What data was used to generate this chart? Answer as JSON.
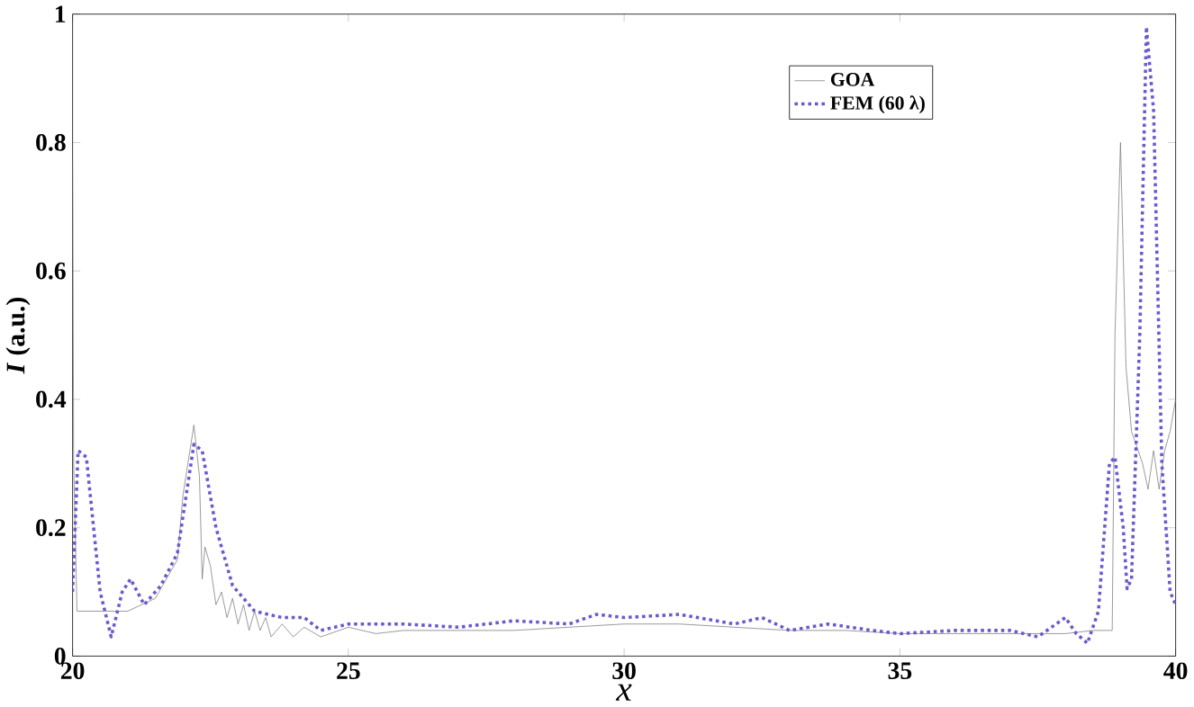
{
  "chart_data": {
    "type": "line",
    "xlabel": "x",
    "ylabel": "*I* (a.u.)",
    "xlim": [
      20,
      40
    ],
    "ylim": [
      0,
      1
    ],
    "xticks": [
      20,
      25,
      30,
      35,
      40
    ],
    "yticks": [
      0,
      0.2,
      0.4,
      0.6,
      0.8,
      1
    ],
    "grid": false,
    "legend": "top right",
    "series": [
      {
        "name": "GOA",
        "color": "#808080",
        "line_style": "solid",
        "x": [
          20,
          20.02,
          20.08,
          20.5,
          21,
          21.5,
          21.9,
          22.0,
          22.2,
          22.3,
          22.35,
          22.4,
          22.5,
          22.6,
          22.7,
          22.8,
          22.9,
          23.0,
          23.1,
          23.2,
          23.3,
          23.4,
          23.5,
          23.6,
          23.8,
          24,
          24.2,
          24.5,
          25,
          25.5,
          26,
          27,
          28,
          29,
          30,
          31,
          32,
          33,
          34,
          35,
          36,
          37,
          38,
          38.5,
          38.85,
          38.9,
          39.0,
          39.1,
          39.2,
          39.4,
          39.5,
          39.6,
          39.7,
          39.8,
          39.9,
          40
        ],
        "values": [
          0.77,
          0.3,
          0.07,
          0.07,
          0.07,
          0.09,
          0.15,
          0.25,
          0.36,
          0.28,
          0.12,
          0.17,
          0.14,
          0.08,
          0.1,
          0.06,
          0.09,
          0.05,
          0.08,
          0.04,
          0.07,
          0.04,
          0.06,
          0.03,
          0.05,
          0.03,
          0.045,
          0.03,
          0.045,
          0.035,
          0.04,
          0.04,
          0.04,
          0.045,
          0.05,
          0.05,
          0.045,
          0.04,
          0.04,
          0.035,
          0.035,
          0.035,
          0.035,
          0.04,
          0.04,
          0.5,
          0.8,
          0.45,
          0.35,
          0.3,
          0.26,
          0.32,
          0.26,
          0.32,
          0.35,
          0.4
        ]
      },
      {
        "name": "FEM (60 λ)",
        "color": "#6a5acd",
        "line_style": "dotted",
        "x": [
          20,
          20.1,
          20.25,
          20.5,
          20.7,
          20.9,
          21.05,
          21.3,
          21.6,
          21.9,
          22.2,
          22.35,
          22.6,
          22.9,
          23.3,
          23.8,
          24.2,
          24.5,
          25,
          26,
          27,
          28,
          29,
          29.5,
          30,
          31,
          32,
          32.5,
          33,
          33.7,
          34.5,
          35,
          36,
          37,
          37.5,
          38,
          38.2,
          38.4,
          38.6,
          38.8,
          38.9,
          39.05,
          39.12,
          39.2,
          39.35,
          39.47,
          39.6,
          39.75,
          39.9,
          40
        ],
        "values": [
          0.1,
          0.32,
          0.31,
          0.1,
          0.03,
          0.1,
          0.12,
          0.08,
          0.11,
          0.16,
          0.33,
          0.32,
          0.2,
          0.11,
          0.07,
          0.06,
          0.06,
          0.04,
          0.05,
          0.05,
          0.045,
          0.055,
          0.05,
          0.065,
          0.06,
          0.065,
          0.05,
          0.06,
          0.04,
          0.05,
          0.04,
          0.035,
          0.04,
          0.04,
          0.03,
          0.06,
          0.035,
          0.02,
          0.07,
          0.3,
          0.31,
          0.2,
          0.105,
          0.12,
          0.5,
          0.98,
          0.85,
          0.3,
          0.1,
          0.08
        ]
      }
    ]
  }
}
